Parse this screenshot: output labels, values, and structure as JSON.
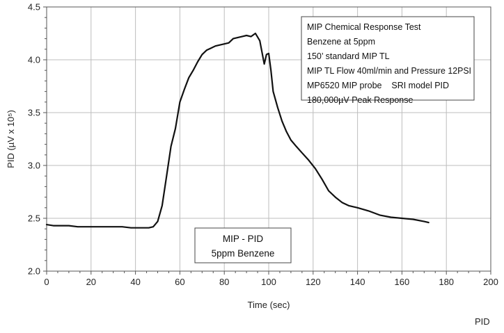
{
  "chart_data": {
    "type": "line",
    "xlabel": "Time (sec)",
    "ylabel": "PID (µV x 10⁵)",
    "footer_label": "PID",
    "xlim": [
      0,
      200
    ],
    "ylim": [
      2.0,
      4.5
    ],
    "x_ticks": [
      "0",
      "20",
      "40",
      "60",
      "80",
      "100",
      "120",
      "140",
      "160",
      "180",
      "200"
    ],
    "y_ticks": [
      "2.0",
      "2.5",
      "3.0",
      "3.5",
      "4.0",
      "4.5"
    ],
    "grid": true,
    "info_box": [
      "MIP Chemical Response Test",
      "Benzene at 5ppm",
      "150’ standard MIP TL",
      "MIP TL Flow 40ml/min and Pressure 12PSI",
      "MP6520 MIP probe    SRI model PID",
      "180,000µV Peak Response"
    ],
    "legend_box": [
      "MIP - PID",
      "5ppm Benzene"
    ],
    "series": [
      {
        "name": "MIP - PID",
        "color": "#111111",
        "x": [
          0,
          3,
          6,
          10,
          14,
          18,
          22,
          26,
          30,
          34,
          38,
          42,
          46,
          48,
          50,
          52,
          54,
          56,
          58,
          60,
          62,
          64,
          66,
          68,
          70,
          72,
          74,
          76,
          78,
          80,
          82,
          84,
          86,
          88,
          90,
          92,
          94,
          96,
          98,
          99,
          100,
          101,
          102,
          104,
          106,
          108,
          110,
          112,
          115,
          118,
          121,
          124,
          127,
          130,
          133,
          136,
          140,
          145,
          150,
          155,
          160,
          165,
          170,
          172
        ],
        "y": [
          2.44,
          2.43,
          2.43,
          2.43,
          2.42,
          2.42,
          2.42,
          2.42,
          2.42,
          2.42,
          2.41,
          2.41,
          2.41,
          2.42,
          2.47,
          2.62,
          2.9,
          3.18,
          3.35,
          3.6,
          3.72,
          3.83,
          3.9,
          3.98,
          4.05,
          4.09,
          4.11,
          4.13,
          4.14,
          4.15,
          4.16,
          4.2,
          4.21,
          4.22,
          4.23,
          4.22,
          4.25,
          4.18,
          3.96,
          4.05,
          4.06,
          3.9,
          3.7,
          3.55,
          3.42,
          3.32,
          3.24,
          3.19,
          3.12,
          3.05,
          2.97,
          2.87,
          2.76,
          2.7,
          2.65,
          2.62,
          2.6,
          2.57,
          2.53,
          2.51,
          2.5,
          2.49,
          2.47,
          2.46
        ]
      }
    ]
  }
}
